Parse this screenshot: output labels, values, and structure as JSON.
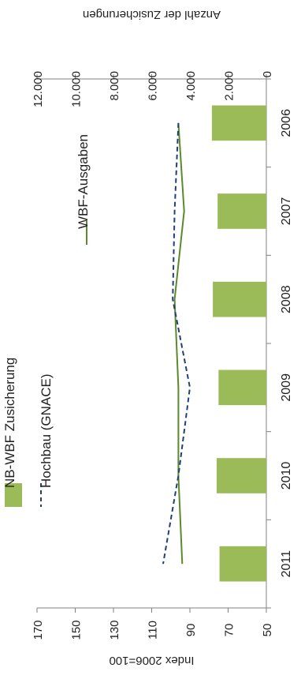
{
  "chart_data": {
    "type": "bar",
    "orientation": "rotated-90",
    "categories": [
      "2006",
      "2007",
      "2008",
      "2009",
      "2010",
      "2011"
    ],
    "series": [
      {
        "name": "NB-WBF Zusicherung",
        "kind": "bar",
        "axis": "right",
        "values": [
          2850,
          2550,
          2800,
          2500,
          2600,
          2450
        ],
        "color": "#9bbb59"
      },
      {
        "name": "WBF-Ausgaben",
        "kind": "line",
        "axis": "left",
        "values": [
          96,
          93,
          98,
          96,
          96,
          94
        ],
        "color": "#5a8a2a",
        "dash": "solid"
      },
      {
        "name": "Hochbau (GNACE)",
        "kind": "line",
        "axis": "left",
        "values": [
          96,
          98,
          99,
          90,
          96,
          104
        ],
        "color": "#1f3f7a",
        "dash": "dashed"
      }
    ],
    "left_axis": {
      "label": "Index 2006=100",
      "min": 50,
      "max": 170,
      "ticks": [
        50,
        70,
        90,
        110,
        130,
        150,
        170
      ],
      "tick_labels": [
        "50",
        "70",
        "90",
        "110",
        "130",
        "150",
        "170"
      ]
    },
    "right_axis": {
      "label": "Anzahl der Zusicherungen",
      "min": 0,
      "max": 12000,
      "ticks": [
        0,
        2000,
        4000,
        6000,
        8000,
        10000,
        12000
      ],
      "tick_labels": [
        "0",
        "2.000",
        "4.000",
        "6.000",
        "8.000",
        "10.000",
        "12.000"
      ]
    },
    "legend": {
      "placement": "top-left"
    },
    "grid": false
  }
}
